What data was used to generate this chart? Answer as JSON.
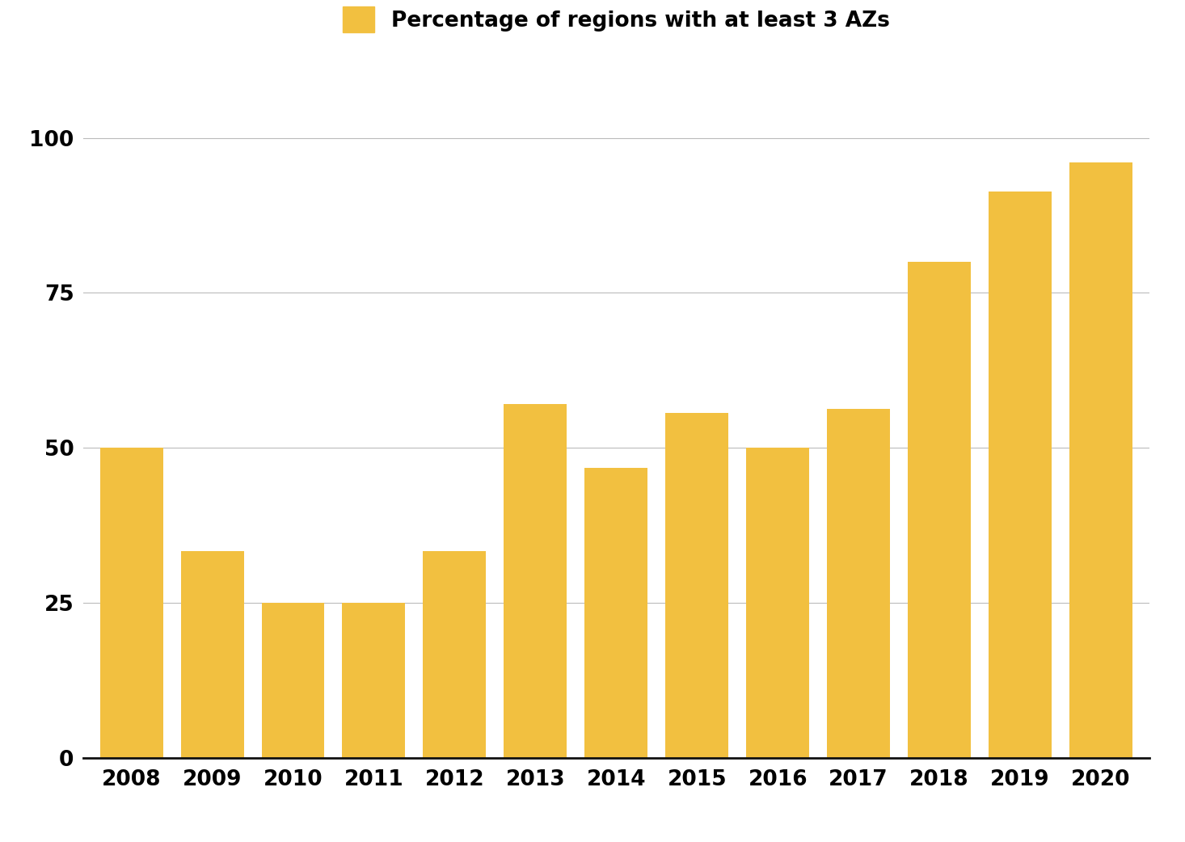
{
  "years": [
    2008,
    2009,
    2010,
    2011,
    2012,
    2013,
    2014,
    2015,
    2016,
    2017,
    2018,
    2019,
    2020
  ],
  "values": [
    50.0,
    33.3,
    25.0,
    25.0,
    33.3,
    57.1,
    46.7,
    55.6,
    50.0,
    56.3,
    80.0,
    91.3,
    96.0
  ],
  "bar_color": "#F2C040",
  "legend_label": "Percentage of regions with at least 3 AZs",
  "legend_patch_color": "#F2C040",
  "ylim": [
    0,
    110
  ],
  "yticks": [
    0,
    25,
    50,
    75,
    100
  ],
  "grid_color": "#bbbbbb",
  "background_color": "#ffffff",
  "bar_width": 0.78,
  "tick_fontsize": 19,
  "legend_fontsize": 19
}
